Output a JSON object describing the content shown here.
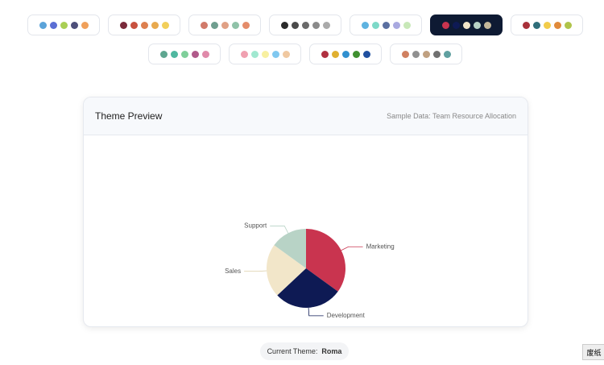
{
  "palettes": [
    {
      "colors": [
        "#5ba3d9",
        "#5b6ed4",
        "#a9cf54",
        "#4d4f7a",
        "#f0a05a"
      ]
    },
    {
      "colors": [
        "#7a2a3a",
        "#c8513f",
        "#dd7f4f",
        "#e8a94e",
        "#f2cf5a"
      ]
    },
    {
      "colors": [
        "#d17a6a",
        "#6f9e8f",
        "#e0a085",
        "#8fc2a8",
        "#e48c6a"
      ]
    },
    {
      "colors": [
        "#2a2a2a",
        "#4a4a4a",
        "#6a6a6a",
        "#8a8a8a",
        "#aaaaaa"
      ]
    },
    {
      "colors": [
        "#5eb3e0",
        "#7dd9c8",
        "#5a6fa0",
        "#a9a9e0",
        "#c8e8b8"
      ]
    },
    {
      "colors": [
        "#c9344f",
        "#0e1a54",
        "#f2e6c9",
        "#b8d3c6",
        "#c4b79a"
      ],
      "selected": true
    },
    {
      "colors": [
        "#a8303a",
        "#2f6e7a",
        "#f2cc4a",
        "#e08a3a",
        "#b0c44a"
      ]
    },
    {
      "colors": [
        "#5ea690",
        "#4fb8a0",
        "#7fcf9a",
        "#b05a8a",
        "#e08aaa"
      ]
    },
    {
      "colors": [
        "#f0a0b0",
        "#a0e8d0",
        "#f8f0a0",
        "#80c8f0",
        "#f0c8a0"
      ]
    },
    {
      "colors": [
        "#b03040",
        "#e0b030",
        "#3090d0",
        "#409030",
        "#2050a0"
      ]
    },
    {
      "colors": [
        "#d08060",
        "#909090",
        "#c0a080",
        "#707070",
        "#60a0a0"
      ]
    }
  ],
  "preview": {
    "title": "Theme Preview",
    "subtitle": "Sample Data: Team Resource Allocation"
  },
  "chart_data": {
    "type": "pie",
    "categories": [
      "Marketing",
      "Development",
      "Sales",
      "Support"
    ],
    "values": [
      35,
      28,
      22,
      15
    ],
    "colors": [
      "#c9344f",
      "#0e1a54",
      "#f2e6c9",
      "#b8d3c6"
    ]
  },
  "footer": {
    "label": "Current Theme:",
    "value": "Roma"
  },
  "dock_tooltip": "废纸"
}
